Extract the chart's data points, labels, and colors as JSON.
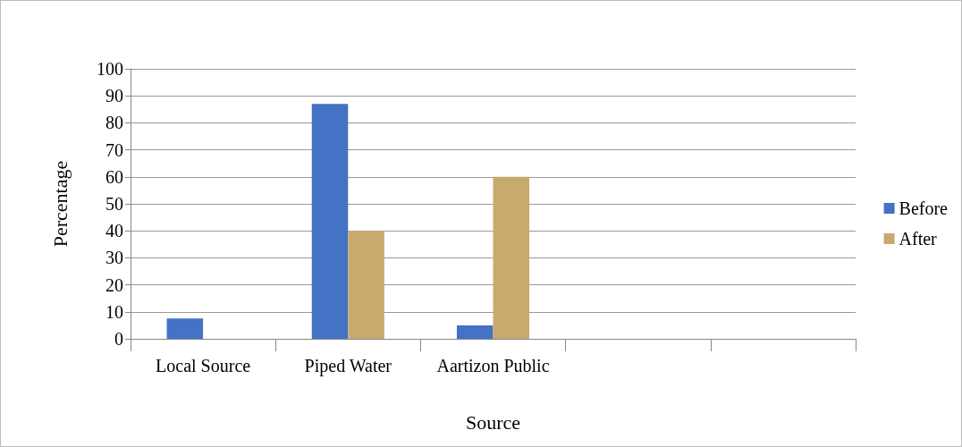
{
  "chart_data": {
    "type": "bar",
    "xlabel": "Source",
    "ylabel": "Percentage",
    "categories": [
      "Local Source",
      "Piped Water",
      "Aartizon Public",
      null,
      null
    ],
    "series": [
      {
        "name": "Before",
        "color": "#4472c4",
        "values": [
          7.5,
          87,
          5,
          null,
          null
        ]
      },
      {
        "name": "After",
        "color": "#c8a96e",
        "values": [
          null,
          40,
          60,
          null,
          null
        ]
      }
    ],
    "ylim": [
      0,
      100
    ],
    "yticks": [
      0,
      10,
      20,
      30,
      40,
      50,
      60,
      70,
      80,
      90,
      100
    ],
    "grid": "y",
    "legend": "right"
  }
}
